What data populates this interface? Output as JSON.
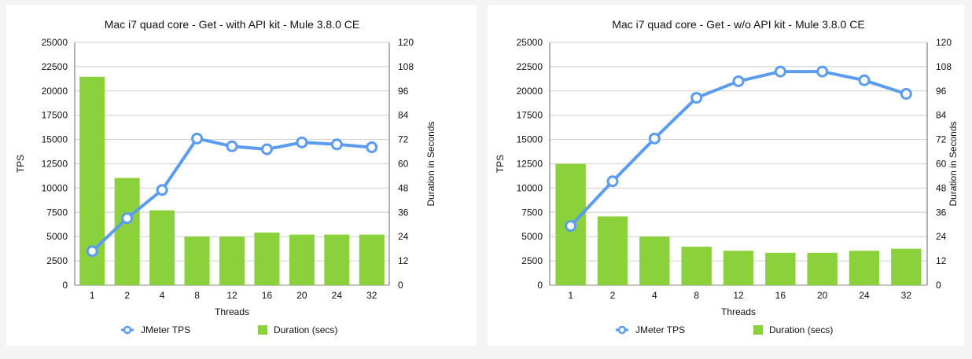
{
  "chart_data": [
    {
      "type": "bar+line",
      "title": "Mac i7 quad core - Get - with API kit - Mule 3.8.0 CE",
      "xlabel": "Threads",
      "ylabel_left": "TPS",
      "ylabel_right": "Duration in Seconds",
      "categories": [
        "1",
        "2",
        "4",
        "8",
        "12",
        "16",
        "20",
        "24",
        "32"
      ],
      "ylim_left": [
        0,
        25000
      ],
      "yticks_left": [
        "0",
        "2500",
        "5000",
        "7500",
        "10000",
        "12500",
        "15000",
        "17500",
        "20000",
        "22500",
        "25000"
      ],
      "ylim_right": [
        0,
        120
      ],
      "yticks_right": [
        "0",
        "12",
        "24",
        "36",
        "48",
        "60",
        "72",
        "84",
        "96",
        "108",
        "120"
      ],
      "grid": "horizontal",
      "legend_position": "bottom",
      "series": [
        {
          "name": "JMeter TPS",
          "kind": "line",
          "axis": "left",
          "color": "#5b9cf0",
          "values": [
            3500,
            6900,
            9800,
            15100,
            14300,
            14000,
            14700,
            14500,
            14200
          ]
        },
        {
          "name": "Duration (secs)",
          "kind": "bar",
          "axis": "right",
          "color": "#8ad13b",
          "values": [
            103,
            53,
            37,
            24,
            24,
            26,
            25,
            25,
            25
          ]
        }
      ]
    },
    {
      "type": "bar+line",
      "title": "Mac i7 quad core - Get - w/o API kit - Mule 3.8.0 CE",
      "xlabel": "Threads",
      "ylabel_left": "TPS",
      "ylabel_right": "Duration in Seconds",
      "categories": [
        "1",
        "2",
        "4",
        "8",
        "12",
        "16",
        "20",
        "24",
        "32"
      ],
      "ylim_left": [
        0,
        25000
      ],
      "yticks_left": [
        "0",
        "2500",
        "5000",
        "7500",
        "10000",
        "12500",
        "15000",
        "17500",
        "20000",
        "22500",
        "25000"
      ],
      "ylim_right": [
        0,
        120
      ],
      "yticks_right": [
        "0",
        "12",
        "24",
        "36",
        "48",
        "60",
        "72",
        "84",
        "96",
        "108",
        "120"
      ],
      "grid": "horizontal",
      "legend_position": "bottom",
      "series": [
        {
          "name": "JMeter TPS",
          "kind": "line",
          "axis": "left",
          "color": "#5b9cf0",
          "values": [
            6100,
            10700,
            15100,
            19300,
            21000,
            22000,
            22000,
            21100,
            19700
          ]
        },
        {
          "name": "Duration (secs)",
          "kind": "bar",
          "axis": "right",
          "color": "#8ad13b",
          "values": [
            60,
            34,
            24,
            19,
            17,
            16,
            16,
            17,
            18
          ]
        }
      ]
    }
  ]
}
